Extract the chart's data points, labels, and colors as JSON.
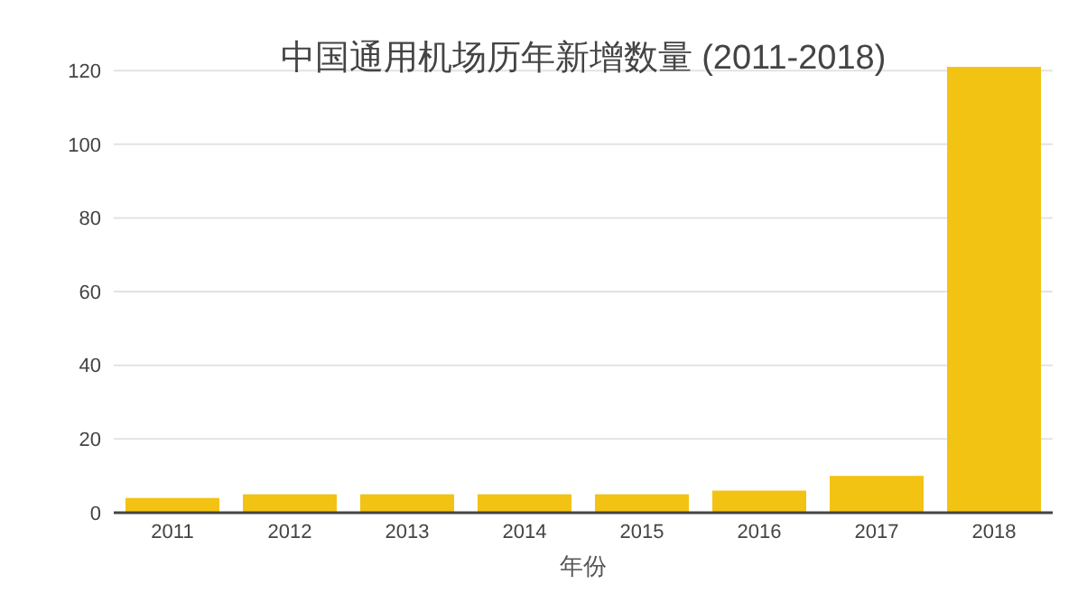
{
  "chart_data": {
    "type": "bar",
    "title": "中国通用机场历年新增数量 (2011-2018)",
    "xlabel": "年份",
    "categories": [
      "2011",
      "2012",
      "2013",
      "2014",
      "2015",
      "2016",
      "2017",
      "2018"
    ],
    "values": [
      4,
      5,
      5,
      5,
      5,
      6,
      10,
      121
    ],
    "color": "#f2c313",
    "ylim": [
      0,
      122
    ],
    "yticks": [
      0,
      20,
      40,
      60,
      80,
      100,
      120
    ],
    "grid": "y"
  }
}
